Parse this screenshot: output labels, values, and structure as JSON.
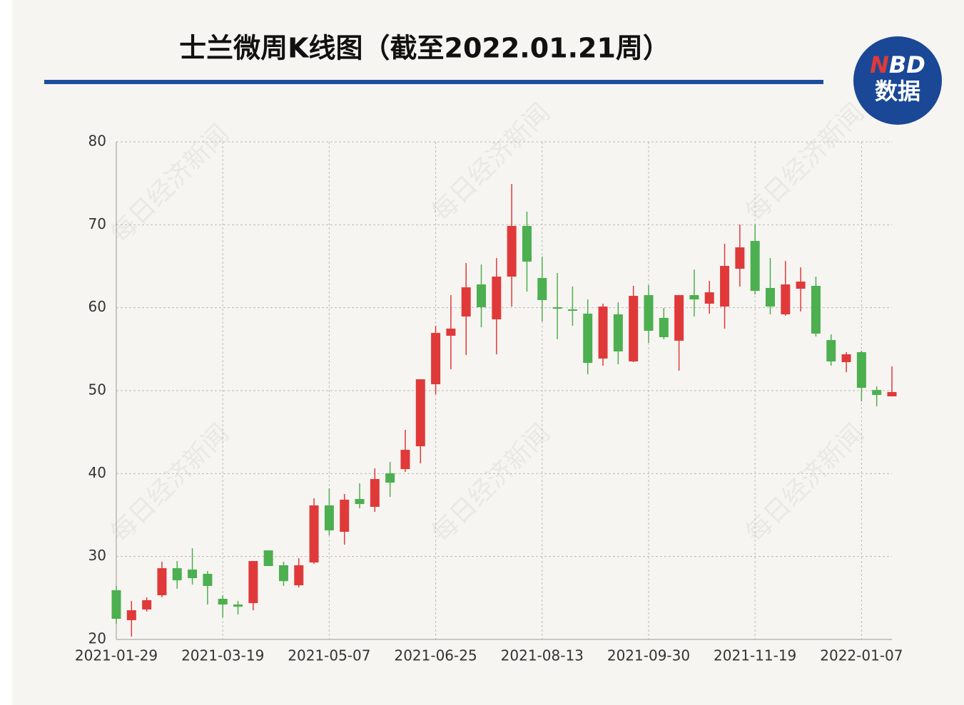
{
  "chart_data": {
    "type": "candlestick",
    "title": "士兰微周K线图（截至2022.01.21周）",
    "logo": {
      "n": "N",
      "bd": "BD",
      "sub": "数据"
    },
    "watermark": "每日经济新闻",
    "categories": [
      "2021-01-29",
      null,
      null,
      null,
      null,
      null,
      null,
      "2021-03-19",
      null,
      null,
      null,
      null,
      null,
      null,
      "2021-05-07",
      null,
      null,
      null,
      null,
      null,
      null,
      "2021-06-25",
      null,
      null,
      null,
      null,
      null,
      null,
      "2021-08-13",
      null,
      null,
      null,
      null,
      null,
      null,
      "2021-09-30",
      null,
      null,
      null,
      null,
      null,
      null,
      "2021-11-19",
      null,
      null,
      null,
      null,
      null,
      null,
      "2022-01-07",
      null,
      null
    ],
    "open": [
      25.93,
      22.32,
      23.61,
      25.33,
      28.59,
      28.42,
      27.91,
      24.9,
      24.21,
      24.38,
      30.74,
      28.94,
      26.53,
      29.28,
      36.16,
      32.98,
      36.93,
      35.99,
      40.03,
      40.54,
      43.29,
      50.77,
      56.62,
      58.94,
      62.81,
      58.6,
      63.75,
      69.86,
      63.58,
      60.06,
      59.8,
      59.28,
      53.87,
      59.2,
      53.52,
      61.52,
      58.77,
      56.02,
      61.52,
      60.49,
      60.14,
      64.7,
      68.05,
      62.38,
      59.2,
      62.29,
      62.64,
      56.1,
      53.44,
      54.64,
      50.08,
      49.31
    ],
    "high": [
      26.45,
      24.64,
      25.07,
      29.37,
      29.45,
      31.0,
      28.25,
      25.33,
      24.64,
      29.45,
      30.74,
      29.37,
      29.8,
      37.02,
      38.22,
      37.54,
      38.82,
      40.63,
      41.4,
      45.27,
      51.37,
      57.82,
      61.52,
      65.39,
      65.21,
      65.99,
      74.93,
      71.58,
      66.16,
      64.18,
      62.55,
      61.0,
      60.49,
      60.66,
      62.64,
      62.72,
      59.97,
      61.52,
      64.61,
      63.24,
      67.71,
      70.03,
      70.03,
      65.99,
      65.64,
      64.87,
      63.75,
      56.79,
      54.64,
      54.81,
      50.51,
      52.92
    ],
    "low": [
      21.89,
      20.35,
      23.35,
      25.07,
      26.1,
      26.62,
      24.21,
      22.66,
      23.01,
      23.52,
      28.85,
      26.45,
      26.27,
      29.11,
      32.55,
      31.43,
      35.81,
      35.39,
      37.19,
      40.2,
      41.23,
      49.57,
      52.58,
      54.3,
      57.65,
      54.38,
      60.14,
      61.95,
      58.34,
      56.19,
      57.82,
      51.98,
      53.01,
      53.18,
      53.44,
      55.76,
      56.19,
      52.41,
      58.94,
      59.28,
      57.48,
      62.55,
      61.6,
      59.2,
      59.03,
      59.54,
      56.53,
      53.01,
      52.23,
      48.71,
      48.11,
      49.31
    ],
    "close": [
      22.49,
      23.52,
      24.73,
      28.59,
      27.13,
      27.39,
      26.45,
      24.21,
      23.95,
      29.45,
      28.85,
      27.03,
      28.94,
      36.16,
      33.15,
      36.85,
      36.33,
      39.34,
      38.91,
      42.86,
      51.37,
      56.96,
      57.48,
      62.46,
      60.06,
      63.75,
      69.86,
      65.56,
      60.92,
      59.88,
      59.63,
      53.35,
      60.14,
      54.73,
      61.43,
      57.22,
      56.45,
      61.52,
      61.0,
      61.86,
      65.04,
      67.28,
      62.03,
      60.14,
      62.81,
      63.15,
      56.88,
      53.52,
      54.38,
      50.34,
      49.48,
      49.83
    ],
    "up_color": "#e0393a",
    "down_color": "#4caf50",
    "ylim": [
      20,
      80
    ],
    "yticks": [
      20,
      30,
      40,
      50,
      60,
      70,
      80
    ],
    "grid": true
  }
}
